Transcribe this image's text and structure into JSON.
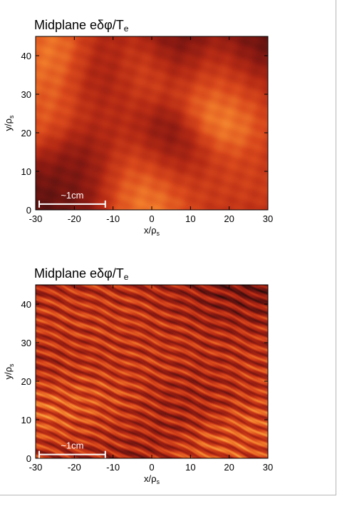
{
  "chart_data": [
    {
      "type": "heatmap",
      "title": "Midplane eδφ/T_e",
      "title_main": "Midplane eδφ/T",
      "title_sub": "e",
      "xlabel": "x/ρs",
      "xlabel_main": "x/ρ",
      "xlabel_sub": "s",
      "ylabel": "y/ρs",
      "ylabel_main": "y/ρ",
      "ylabel_sub": "s",
      "xlim": [
        -30,
        30
      ],
      "ylim": [
        0,
        45
      ],
      "xticks": [
        -30,
        -20,
        -10,
        0,
        10,
        20,
        30
      ],
      "yticks": [
        0,
        10,
        20,
        30,
        40
      ],
      "colormap": [
        "#1a0a08",
        "#5a1210",
        "#8b1a12",
        "#b52a14",
        "#d9481c",
        "#f07a2a",
        "#ffb24a"
      ],
      "texture": "smooth",
      "scale_bar": {
        "label": "~1cm",
        "x_start": -30,
        "x_end": -12,
        "y": 1.5
      },
      "features": [
        {
          "x": -23,
          "y": 40,
          "value": 0.85
        },
        {
          "x": -27,
          "y": 25,
          "value": 0.7
        },
        {
          "x": -10,
          "y": 26,
          "value": 0.45
        },
        {
          "x": -3,
          "y": 38,
          "value": 0.8
        },
        {
          "x": 16,
          "y": 36,
          "value": 0.55
        },
        {
          "x": 18,
          "y": 24,
          "value": 0.95
        },
        {
          "x": 0,
          "y": 6,
          "value": 0.95
        },
        {
          "x": -5,
          "y": 11,
          "value": 0.6
        },
        {
          "x": 12,
          "y": 8,
          "value": 0.55
        },
        {
          "x": 26,
          "y": 8,
          "value": 0.55
        },
        {
          "x": 25,
          "y": 30,
          "value": 0.5
        },
        {
          "x": 5,
          "y": 44,
          "value": 0.0
        },
        {
          "x": 5,
          "y": 15,
          "value": 0.0
        },
        {
          "x": -12,
          "y": 37,
          "value": 0.1
        },
        {
          "x": -18,
          "y": 12,
          "value": 0.15
        },
        {
          "x": 28,
          "y": 42,
          "value": 0.05
        }
      ]
    },
    {
      "type": "heatmap",
      "title": "Midplane eδφ/T_e",
      "title_main": "Midplane eδφ/T",
      "title_sub": "e",
      "xlabel": "x/ρs",
      "xlabel_main": "x/ρ",
      "xlabel_sub": "s",
      "ylabel": "y/ρs",
      "ylabel_main": "y/ρ",
      "ylabel_sub": "s",
      "xlim": [
        -30,
        30
      ],
      "ylim": [
        0,
        45
      ],
      "xticks": [
        -30,
        -20,
        -10,
        0,
        10,
        20,
        30
      ],
      "yticks": [
        0,
        10,
        20,
        30,
        40
      ],
      "colormap": [
        "#1a0a08",
        "#5a1210",
        "#8b1a12",
        "#b52a14",
        "#d9481c",
        "#f07a2a",
        "#ffb24a"
      ],
      "texture": "striated",
      "scale_bar": {
        "label": "~1cm",
        "x_start": -30,
        "x_end": -12,
        "y": 1.0
      },
      "features": [
        {
          "x": -22,
          "y": 14,
          "value": 0.9
        },
        {
          "x": -12,
          "y": 10,
          "value": 0.85
        },
        {
          "x": -2,
          "y": 33,
          "value": 0.8
        },
        {
          "x": 5,
          "y": 30,
          "value": 0.75
        },
        {
          "x": 20,
          "y": 22,
          "value": 0.75
        },
        {
          "x": 24,
          "y": 6,
          "value": 0.7
        },
        {
          "x": -25,
          "y": 37,
          "value": 0.55
        },
        {
          "x": 27,
          "y": 33,
          "value": 0.45
        },
        {
          "x": 8,
          "y": 18,
          "value": 0.0
        },
        {
          "x": -8,
          "y": 26,
          "value": 0.1
        },
        {
          "x": 15,
          "y": 40,
          "value": 0.15
        },
        {
          "x": -20,
          "y": 5,
          "value": 0.2
        },
        {
          "x": 25,
          "y": 43,
          "value": 0.1
        }
      ]
    }
  ]
}
